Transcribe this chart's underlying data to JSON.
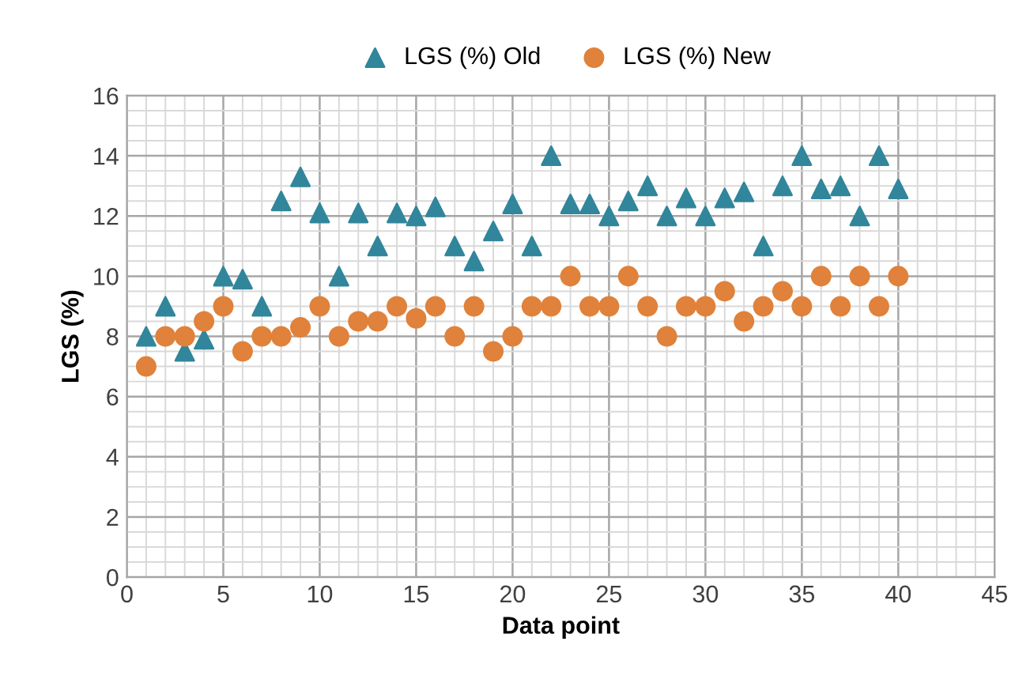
{
  "chart_data": {
    "type": "scatter",
    "xlabel": "Data point",
    "ylabel": "LGS (%)",
    "xlim": [
      0,
      45
    ],
    "xticks": [
      0,
      5,
      10,
      15,
      20,
      25,
      30,
      35,
      40,
      45
    ],
    "ylim": [
      0,
      16
    ],
    "yticks": [
      0,
      2,
      4,
      6,
      8,
      10,
      12,
      14,
      16
    ],
    "grid": true,
    "legend": "top",
    "x": [
      1,
      2,
      3,
      4,
      5,
      6,
      7,
      8,
      9,
      10,
      11,
      12,
      13,
      14,
      15,
      16,
      17,
      18,
      19,
      20,
      21,
      22,
      23,
      24,
      25,
      26,
      27,
      28,
      29,
      30,
      31,
      32,
      33,
      34,
      35,
      36,
      37,
      38,
      39,
      40
    ],
    "series": [
      {
        "name": "LGS (%) Old",
        "color": "#31869b",
        "marker": "triangle",
        "values": [
          8,
          9,
          7.5,
          7.9,
          10,
          9.9,
          9,
          12.5,
          13.3,
          12.1,
          10,
          12.1,
          11,
          12.1,
          12,
          12.3,
          11,
          10.5,
          11.5,
          12.4,
          11,
          14,
          12.4,
          12.4,
          12,
          12.5,
          13,
          12,
          12.6,
          12,
          12.6,
          12.8,
          11,
          13,
          14,
          12.9,
          13,
          12,
          14,
          12.9
        ]
      },
      {
        "name": "LGS (%) New",
        "color": "#e0823b",
        "marker": "circle",
        "values": [
          7,
          8,
          8,
          8.5,
          9,
          7.5,
          8,
          8,
          8.3,
          9,
          8,
          8.5,
          8.5,
          9,
          8.6,
          9,
          8,
          9,
          7.5,
          8,
          9,
          9,
          10,
          9,
          9,
          10,
          9,
          8,
          9,
          9,
          9.5,
          8.5,
          9,
          9.5,
          9,
          10,
          9,
          10,
          9,
          10
        ]
      }
    ]
  }
}
